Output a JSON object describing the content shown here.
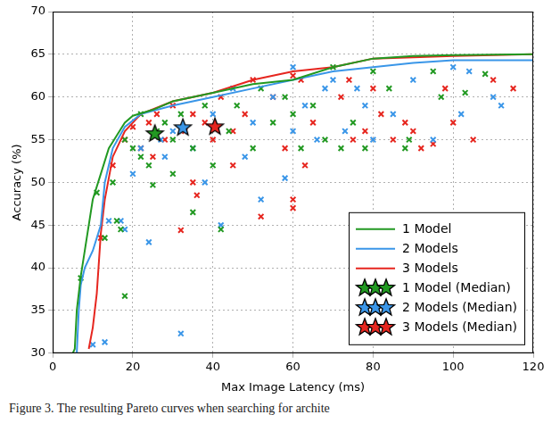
{
  "chart_data": {
    "type": "scatter",
    "x_label": "Max Image Latency (ms)",
    "y_label": "Accuracy (%)",
    "caption": "Figure 3. The resulting Pareto curves when searching for archite",
    "xlim": [
      0,
      120
    ],
    "xticks": [
      0,
      20,
      40,
      60,
      80,
      100,
      120
    ],
    "ylim": [
      30,
      70
    ],
    "yticks": [
      30,
      35,
      40,
      45,
      50,
      55,
      60,
      65,
      70
    ],
    "grid": true,
    "legend": "lower right",
    "series": [
      {
        "type": "scatter",
        "marker": "x",
        "color": "#229922",
        "values": [
          [
            7,
            38.8
          ],
          [
            11,
            48.8
          ],
          [
            13,
            43.5
          ],
          [
            15,
            50
          ],
          [
            16,
            45.5
          ],
          [
            17,
            44.5
          ],
          [
            18,
            36.7
          ],
          [
            18,
            55
          ],
          [
            20,
            54
          ],
          [
            22,
            53
          ],
          [
            24,
            52
          ],
          [
            25,
            49.7
          ],
          [
            26,
            56
          ],
          [
            28,
            57
          ],
          [
            30,
            55
          ],
          [
            32,
            58
          ],
          [
            35,
            54
          ],
          [
            38,
            59
          ],
          [
            40,
            52
          ],
          [
            42,
            44.5
          ],
          [
            44,
            56
          ],
          [
            46,
            59
          ],
          [
            50,
            54
          ],
          [
            52,
            61
          ],
          [
            55,
            57
          ],
          [
            58,
            60
          ],
          [
            60,
            58
          ],
          [
            62,
            54
          ],
          [
            65,
            59
          ],
          [
            68,
            55
          ],
          [
            70,
            63.5
          ],
          [
            72,
            54
          ],
          [
            75,
            57
          ],
          [
            80,
            63
          ],
          [
            84,
            61
          ],
          [
            88,
            54
          ],
          [
            89,
            55
          ],
          [
            95,
            63
          ],
          [
            97,
            60
          ],
          [
            103,
            60.5
          ],
          [
            108,
            62.7
          ],
          [
            78,
            54
          ],
          [
            35,
            46.5
          ],
          [
            22,
            58
          ],
          [
            30,
            51
          ]
        ]
      },
      {
        "type": "scatter",
        "marker": "x",
        "color": "#3a96e8",
        "values": [
          [
            10,
            31
          ],
          [
            13,
            31.3
          ],
          [
            14,
            45.5
          ],
          [
            17,
            45.5
          ],
          [
            18,
            44.5
          ],
          [
            20,
            51
          ],
          [
            24,
            43
          ],
          [
            27,
            55
          ],
          [
            30,
            56
          ],
          [
            32,
            32.3
          ],
          [
            35,
            54
          ],
          [
            40,
            58
          ],
          [
            42,
            45
          ],
          [
            45,
            61
          ],
          [
            48,
            53
          ],
          [
            50,
            57
          ],
          [
            55,
            60
          ],
          [
            58,
            50.5
          ],
          [
            60,
            56
          ],
          [
            63,
            59
          ],
          [
            66,
            55
          ],
          [
            70,
            62
          ],
          [
            73,
            56
          ],
          [
            76,
            61
          ],
          [
            80,
            55
          ],
          [
            85,
            58
          ],
          [
            90,
            62
          ],
          [
            95,
            55
          ],
          [
            100,
            63.5
          ],
          [
            102,
            58
          ],
          [
            104,
            63
          ],
          [
            110,
            60
          ],
          [
            112,
            59
          ],
          [
            60,
            63.5
          ],
          [
            22,
            54
          ],
          [
            38,
            50
          ],
          [
            52,
            48
          ],
          [
            68,
            61
          ],
          [
            78,
            59
          ],
          [
            28,
            53
          ]
        ]
      },
      {
        "type": "scatter",
        "marker": "x",
        "color": "#e6261f",
        "values": [
          [
            12,
            43.5
          ],
          [
            15,
            52
          ],
          [
            18,
            55
          ],
          [
            20,
            56.5
          ],
          [
            22,
            54
          ],
          [
            24,
            57
          ],
          [
            26,
            58
          ],
          [
            28,
            55
          ],
          [
            30,
            59
          ],
          [
            32,
            44.4
          ],
          [
            33,
            56
          ],
          [
            35,
            50
          ],
          [
            36,
            48.5
          ],
          [
            38,
            57
          ],
          [
            40,
            55
          ],
          [
            42,
            60
          ],
          [
            45,
            52
          ],
          [
            48,
            58
          ],
          [
            50,
            62
          ],
          [
            52,
            46
          ],
          [
            55,
            60
          ],
          [
            58,
            54
          ],
          [
            60,
            48
          ],
          [
            62,
            62
          ],
          [
            65,
            57
          ],
          [
            63,
            52
          ],
          [
            60,
            47
          ],
          [
            72,
            60
          ],
          [
            75,
            55
          ],
          [
            78,
            56
          ],
          [
            80,
            61
          ],
          [
            82,
            58
          ],
          [
            85,
            55
          ],
          [
            88,
            57
          ],
          [
            90,
            56
          ],
          [
            92,
            54
          ],
          [
            95,
            54.5
          ],
          [
            98,
            61
          ],
          [
            100,
            57
          ],
          [
            105,
            55
          ],
          [
            110,
            62
          ],
          [
            115,
            61
          ],
          [
            45,
            56
          ],
          [
            35,
            58
          ],
          [
            25,
            53
          ],
          [
            60,
            62.5
          ],
          [
            74,
            62
          ]
        ]
      },
      {
        "name": "1 Model",
        "type": "line",
        "line_style": "solid",
        "color": "#229922",
        "values": [
          [
            5,
            30
          ],
          [
            5.5,
            30.5
          ],
          [
            6,
            35
          ],
          [
            7,
            39
          ],
          [
            8,
            42
          ],
          [
            10,
            48
          ],
          [
            12,
            51
          ],
          [
            14,
            54
          ],
          [
            16,
            55.5
          ],
          [
            18,
            57
          ],
          [
            20,
            57.8
          ],
          [
            25,
            58.5
          ],
          [
            30,
            59.5
          ],
          [
            40,
            60.5
          ],
          [
            50,
            61.5
          ],
          [
            60,
            62
          ],
          [
            70,
            63.5
          ],
          [
            80,
            64.5
          ],
          [
            90,
            64.8
          ],
          [
            100,
            64.9
          ],
          [
            120,
            65
          ]
        ]
      },
      {
        "name": "2 Models",
        "type": "line",
        "line_style": "solid",
        "color": "#3a96e8",
        "values": [
          [
            6,
            30
          ],
          [
            6.5,
            35
          ],
          [
            7,
            38
          ],
          [
            8,
            40
          ],
          [
            10,
            42
          ],
          [
            12,
            45
          ],
          [
            13,
            50
          ],
          [
            15,
            54
          ],
          [
            18,
            56.5
          ],
          [
            22,
            58
          ],
          [
            30,
            59
          ],
          [
            40,
            60
          ],
          [
            50,
            61
          ],
          [
            60,
            62
          ],
          [
            70,
            63
          ],
          [
            90,
            64
          ],
          [
            100,
            64.3
          ],
          [
            120,
            64.3
          ]
        ]
      },
      {
        "name": "3 Models",
        "type": "line",
        "line_style": "solid",
        "color": "#e6261f",
        "values": [
          [
            9,
            30.5
          ],
          [
            10,
            33
          ],
          [
            11,
            37
          ],
          [
            12,
            44
          ],
          [
            13,
            48
          ],
          [
            15,
            53
          ],
          [
            18,
            56
          ],
          [
            22,
            58
          ],
          [
            30,
            59.5
          ],
          [
            40,
            60.5
          ],
          [
            50,
            62
          ],
          [
            60,
            63
          ],
          [
            70,
            63.5
          ],
          [
            80,
            64.5
          ],
          [
            100,
            64.8
          ],
          [
            120,
            65
          ]
        ]
      },
      {
        "name": "1 Model (Median)",
        "type": "scatter",
        "marker": "star",
        "color": "#229922",
        "values": [
          [
            25.5,
            55.8
          ]
        ]
      },
      {
        "name": "2 Models (Median)",
        "type": "scatter",
        "marker": "star",
        "color": "#3a96e8",
        "values": [
          [
            32.5,
            56.5
          ]
        ]
      },
      {
        "name": "3 Models (Median)",
        "type": "scatter",
        "marker": "star",
        "color": "#e6261f",
        "values": [
          [
            40.5,
            56.6
          ]
        ]
      }
    ]
  }
}
